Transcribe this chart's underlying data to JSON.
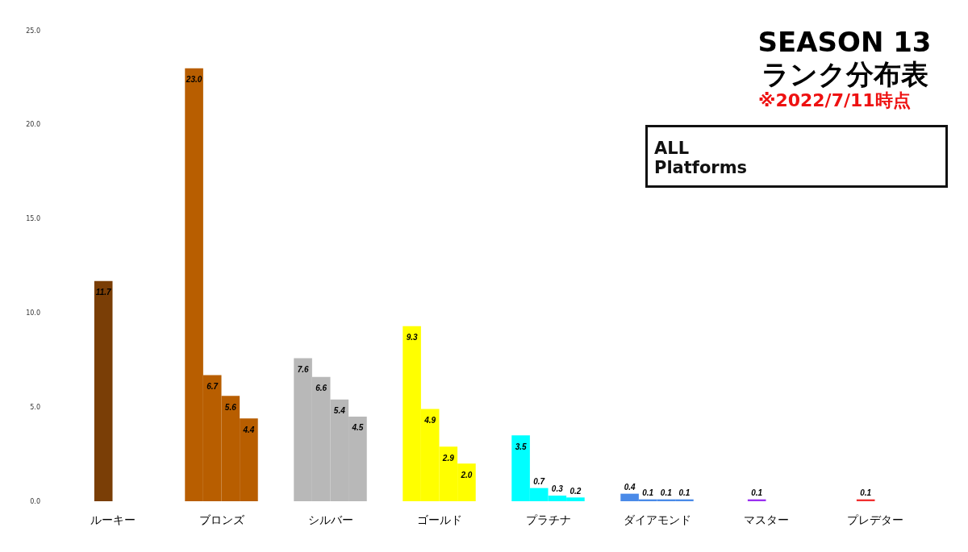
{
  "chart_data": {
    "type": "bar",
    "title": "SEASON 13",
    "subtitle": "ランク分布表",
    "annotations": [
      "※2022/7/11時点",
      "ALL Platforms"
    ],
    "categories": [
      "ルーキー",
      "ブロンズ",
      "シルバー",
      "ゴールド",
      "プラチナ",
      "ダイアモンド",
      "マスター",
      "プレデター"
    ],
    "series": [
      {
        "colors": [
          "#7a3e06",
          "#b85e00",
          "#b8b8b8",
          "#ffff00",
          "#00ffff",
          "#4a8ae8",
          "#9a30f0",
          "#f03030"
        ],
        "values": [
          null,
          23.0,
          7.6,
          9.3,
          3.5,
          0.4,
          null,
          null
        ],
        "value_labels": [
          null,
          "23.0",
          "7.6",
          "9.3",
          "3.5",
          "0.4",
          null,
          null
        ]
      },
      {
        "colors": [
          "#7a3e06",
          "#b85e00",
          "#b8b8b8",
          "#ffff00",
          "#00ffff",
          "#4a8ae8",
          "#9a30f0",
          "#f03030"
        ],
        "values": [
          11.7,
          6.7,
          6.6,
          4.9,
          0.7,
          0.1,
          0.1,
          0.1
        ],
        "value_labels": [
          "11.7",
          "6.7",
          "6.6",
          "4.9",
          "0.7",
          "0.1",
          "0.1",
          "0.1"
        ]
      },
      {
        "colors": [
          "#7a3e06",
          "#b85e00",
          "#b8b8b8",
          "#ffff00",
          "#00ffff",
          "#4a8ae8",
          "#9a30f0",
          "#f03030"
        ],
        "values": [
          null,
          5.6,
          5.4,
          2.9,
          0.3,
          0.1,
          null,
          null
        ],
        "value_labels": [
          null,
          "5.6",
          "5.4",
          "2.9",
          "0.3",
          "0.1",
          null,
          null
        ]
      },
      {
        "colors": [
          "#7a3e06",
          "#b85e00",
          "#b8b8b8",
          "#ffff00",
          "#00ffff",
          "#4a8ae8",
          "#9a30f0",
          "#f03030"
        ],
        "values": [
          null,
          4.4,
          4.5,
          2.0,
          0.2,
          0.1,
          null,
          null
        ],
        "value_labels": [
          null,
          "4.4",
          "4.5",
          "2.0",
          "0.2",
          "0.1",
          null,
          null
        ]
      }
    ],
    "ylim": [
      0,
      25
    ],
    "yticks": [
      {
        "value": 0,
        "label": "0.0"
      },
      {
        "value": 5,
        "label": "5.0"
      },
      {
        "value": 10,
        "label": "10.0"
      },
      {
        "value": 15,
        "label": "15.0"
      },
      {
        "value": 20,
        "label": "20.0"
      },
      {
        "value": 25,
        "label": "25.0"
      }
    ]
  }
}
